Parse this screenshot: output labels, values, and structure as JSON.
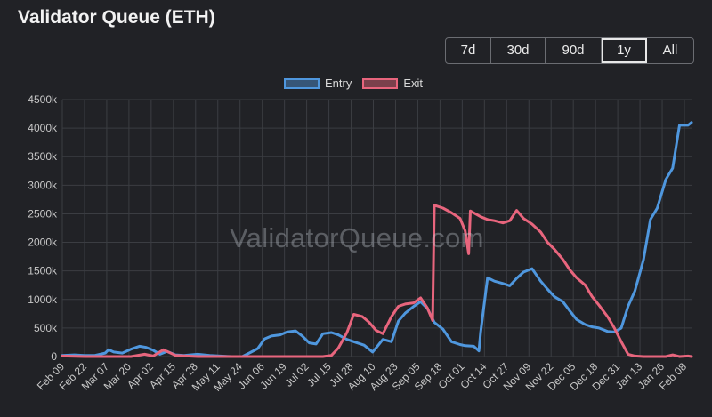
{
  "title": "Validator Queue (ETH)",
  "ranges": [
    {
      "label": "7d",
      "active": false
    },
    {
      "label": "30d",
      "active": false
    },
    {
      "label": "90d",
      "active": false
    },
    {
      "label": "1y",
      "active": true
    },
    {
      "label": "All",
      "active": false
    }
  ],
  "watermark": "ValidatorQueue.com",
  "colors": {
    "entry": "#4f97de",
    "exit": "#e8657d",
    "grid": "#3b3d42",
    "background": "#212226"
  },
  "chart_data": {
    "type": "line",
    "title": "",
    "xlabel": "",
    "ylabel": "",
    "ylim": [
      0,
      4500
    ],
    "yticks": [
      "0",
      "500k",
      "1000k",
      "1500k",
      "2000k",
      "2500k",
      "3000k",
      "3500k",
      "4000k",
      "4500k"
    ],
    "x_tick_labels": [
      "Feb 09",
      "Feb 22",
      "Mar 07",
      "Mar 20",
      "Apr 02",
      "Apr 15",
      "Apr 28",
      "May 11",
      "May 24",
      "Jun 06",
      "Jun 19",
      "Jul 02",
      "Jul 15",
      "Jul 28",
      "Aug 10",
      "Aug 23",
      "Sep 05",
      "Sep 18",
      "Oct 01",
      "Oct 14",
      "Oct 27",
      "Nov 09",
      "Nov 22",
      "Dec 05",
      "Dec 18",
      "Dec 31",
      "Jan 13",
      "Jan 26",
      "Feb 08"
    ],
    "legend": [
      {
        "name": "Entry",
        "color": "#4f97de"
      },
      {
        "name": "Exit",
        "color": "#e8657d"
      }
    ],
    "legend_position": "top",
    "grid": true,
    "series": [
      {
        "name": "Entry",
        "color": "#4f97de",
        "x": [
          "Feb 09",
          "Feb 16",
          "Feb 22",
          "Feb 28",
          "Mar 05",
          "Mar 07",
          "Mar 10",
          "Mar 15",
          "Mar 20",
          "Mar 25",
          "Mar 29",
          "Apr 02",
          "Apr 06",
          "Apr 10",
          "Apr 15",
          "Apr 20",
          "Apr 28",
          "May 05",
          "May 11",
          "May 18",
          "May 24",
          "May 28",
          "Jun 02",
          "Jun 06",
          "Jun 10",
          "Jun 15",
          "Jun 19",
          "Jun 24",
          "Jun 28",
          "Jul 02",
          "Jul 06",
          "Jul 10",
          "Jul 15",
          "Jul 19",
          "Jul 24",
          "Jul 28",
          "Aug 03",
          "Aug 08",
          "Aug 10",
          "Aug 14",
          "Aug 19",
          "Aug 23",
          "Aug 27",
          "Sep 01",
          "Sep 05",
          "Sep 09",
          "Sep 13",
          "Sep 18",
          "Sep 23",
          "Sep 28",
          "Oct 01",
          "Oct 06",
          "Oct 09",
          "Oct 10",
          "Oct 14",
          "Oct 18",
          "Oct 23",
          "Oct 27",
          "Oct 31",
          "Nov 04",
          "Nov 09",
          "Nov 14",
          "Nov 18",
          "Nov 22",
          "Nov 27",
          "Dec 01",
          "Dec 05",
          "Dec 10",
          "Dec 14",
          "Dec 18",
          "Dec 23",
          "Dec 27",
          "Dec 31",
          "Jan 04",
          "Jan 08",
          "Jan 13",
          "Jan 17",
          "Jan 21",
          "Jan 26",
          "Jan 30",
          "Feb 03",
          "Feb 08",
          "Feb 10"
        ],
        "values": [
          20,
          30,
          20,
          20,
          60,
          120,
          80,
          60,
          130,
          180,
          160,
          110,
          40,
          90,
          30,
          20,
          40,
          20,
          10,
          0,
          0,
          60,
          140,
          310,
          360,
          380,
          430,
          450,
          360,
          240,
          220,
          400,
          420,
          380,
          300,
          260,
          200,
          80,
          150,
          300,
          260,
          620,
          760,
          880,
          960,
          840,
          600,
          480,
          260,
          210,
          190,
          180,
          100,
          420,
          1380,
          1320,
          1280,
          1240,
          1370,
          1480,
          1540,
          1320,
          1180,
          1050,
          960,
          800,
          650,
          560,
          520,
          500,
          440,
          430,
          500,
          880,
          1150,
          1700,
          2400,
          2600,
          3100,
          3300,
          4050,
          4050,
          4100
        ]
      },
      {
        "name": "Exit",
        "color": "#e8657d",
        "x": [
          "Feb 09",
          "Feb 22",
          "Mar 07",
          "Mar 20",
          "Mar 28",
          "Apr 02",
          "Apr 08",
          "Apr 15",
          "Apr 28",
          "May 11",
          "May 24",
          "Jun 06",
          "Jun 19",
          "Jul 02",
          "Jul 10",
          "Jul 15",
          "Jul 19",
          "Jul 24",
          "Jul 28",
          "Aug 02",
          "Aug 06",
          "Aug 10",
          "Aug 14",
          "Aug 19",
          "Aug 23",
          "Aug 27",
          "Sep 01",
          "Sep 05",
          "Sep 09",
          "Sep 12",
          "Sep 13",
          "Sep 18",
          "Sep 23",
          "Sep 28",
          "Oct 01",
          "Oct 03",
          "Oct 04",
          "Oct 10",
          "Oct 14",
          "Oct 18",
          "Oct 23",
          "Oct 27",
          "Oct 31",
          "Nov 04",
          "Nov 09",
          "Nov 14",
          "Nov 18",
          "Nov 22",
          "Nov 27",
          "Dec 01",
          "Dec 05",
          "Dec 10",
          "Dec 14",
          "Dec 18",
          "Dec 23",
          "Dec 27",
          "Dec 31",
          "Jan 04",
          "Jan 08",
          "Jan 13",
          "Jan 17",
          "Jan 21",
          "Jan 26",
          "Jan 30",
          "Feb 03",
          "Feb 08",
          "Feb 10"
        ],
        "values": [
          10,
          0,
          0,
          0,
          40,
          10,
          120,
          20,
          0,
          0,
          0,
          0,
          0,
          0,
          0,
          20,
          150,
          420,
          740,
          700,
          600,
          460,
          400,
          700,
          880,
          920,
          940,
          1030,
          850,
          630,
          2650,
          2600,
          2520,
          2420,
          2200,
          1800,
          2550,
          2450,
          2400,
          2380,
          2340,
          2380,
          2560,
          2420,
          2320,
          2180,
          2000,
          1880,
          1700,
          1520,
          1380,
          1250,
          1050,
          900,
          700,
          500,
          260,
          40,
          10,
          0,
          0,
          0,
          0,
          30,
          0,
          10,
          0
        ]
      }
    ]
  }
}
